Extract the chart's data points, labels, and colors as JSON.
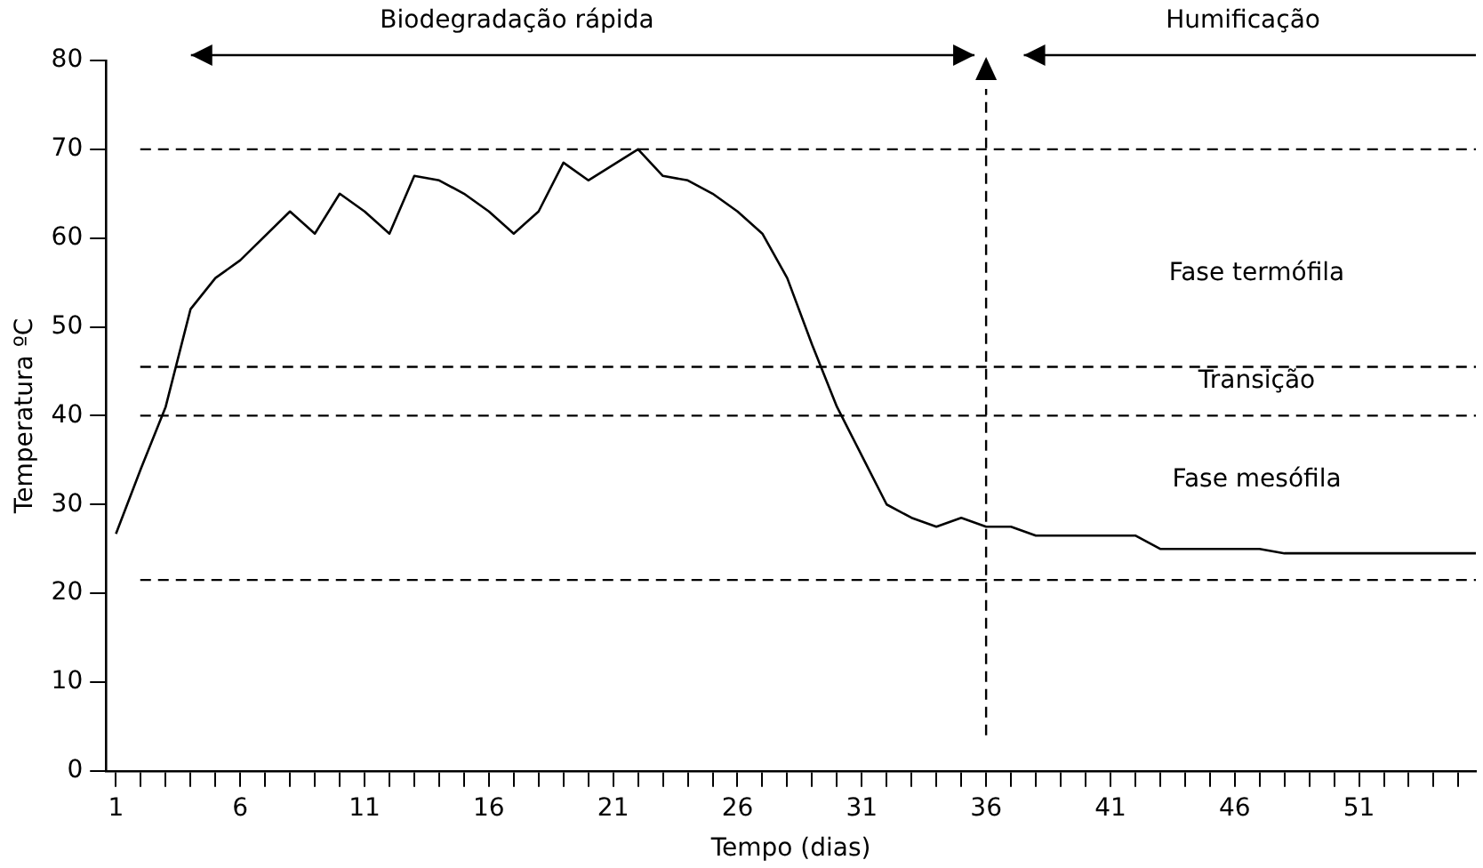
{
  "chart_data": {
    "type": "line",
    "xlabel": "Tempo (dias)",
    "ylabel": "Temperatura ºC",
    "x": [
      1,
      2,
      3,
      4,
      5,
      6,
      8,
      9,
      10,
      11,
      12,
      13,
      14,
      15,
      16,
      17,
      18,
      19,
      20,
      22,
      23,
      24,
      25,
      26,
      27,
      28,
      29,
      30,
      31,
      32,
      33,
      34,
      35,
      36,
      37,
      38,
      42,
      43,
      47,
      48,
      55.7
    ],
    "series": [
      {
        "color": "#000000",
        "values": [
          26.7,
          34,
          41,
          52,
          55.5,
          57.5,
          63,
          60.5,
          65,
          63,
          60.5,
          67,
          66.5,
          65,
          63,
          60.5,
          63,
          68.5,
          66.5,
          70,
          67,
          66.5,
          65,
          63,
          60.5,
          55.5,
          48,
          41,
          35.5,
          30,
          28.5,
          27.5,
          28.5,
          27.5,
          27.5,
          26.5,
          26.5,
          25,
          25,
          24.5,
          24.5
        ]
      }
    ],
    "xlim": [
      0.6,
      55.7
    ],
    "xticks": [
      1,
      {
        "value": 2,
        "label": null
      },
      {
        "value": 3,
        "label": null
      },
      {
        "value": 4,
        "label": null
      },
      {
        "value": 5,
        "label": null
      },
      6,
      {
        "value": 7,
        "label": null
      },
      {
        "value": 8,
        "label": null
      },
      {
        "value": 9,
        "label": null
      },
      {
        "value": 10,
        "label": null
      },
      11,
      {
        "value": 12,
        "label": null
      },
      {
        "value": 13,
        "label": null
      },
      {
        "value": 14,
        "label": null
      },
      {
        "value": 15,
        "label": null
      },
      16,
      {
        "value": 17,
        "label": null
      },
      {
        "value": 18,
        "label": null
      },
      {
        "value": 19,
        "label": null
      },
      {
        "value": 20,
        "label": null
      },
      21,
      {
        "value": 22,
        "label": null
      },
      {
        "value": 23,
        "label": null
      },
      {
        "value": 24,
        "label": null
      },
      {
        "value": 25,
        "label": null
      },
      26,
      {
        "value": 27,
        "label": null
      },
      {
        "value": 28,
        "label": null
      },
      {
        "value": 29,
        "label": null
      },
      {
        "value": 30,
        "label": null
      },
      31,
      {
        "value": 32,
        "label": null
      },
      {
        "value": 33,
        "label": null
      },
      {
        "value": 34,
        "label": null
      },
      {
        "value": 35,
        "label": null
      },
      36,
      {
        "value": 37,
        "label": null
      },
      {
        "value": 38,
        "label": null
      },
      {
        "value": 39,
        "label": null
      },
      {
        "value": 40,
        "label": null
      },
      41,
      {
        "value": 42,
        "label": null
      },
      {
        "value": 43,
        "label": null
      },
      {
        "value": 44,
        "label": null
      },
      {
        "value": 45,
        "label": null
      },
      46,
      {
        "value": 47,
        "label": null
      },
      {
        "value": 48,
        "label": null
      },
      {
        "value": 49,
        "label": null
      },
      {
        "value": 50,
        "label": null
      },
      51,
      {
        "value": 52,
        "label": null
      },
      {
        "value": 53,
        "label": null
      },
      {
        "value": 54,
        "label": null
      },
      {
        "value": 55,
        "label": null
      }
    ],
    "ylim": [
      0,
      80
    ],
    "yticks": [
      0,
      10,
      20,
      30,
      40,
      50,
      60,
      70,
      80
    ],
    "grid": false,
    "legend": false,
    "marker": "none",
    "line_style": "solid",
    "ref_lines": [
      {
        "axis": "x",
        "value": 36,
        "line_style": "dashed",
        "color": "#000000"
      },
      {
        "axis": "y",
        "value": 70,
        "line_style": "dashed",
        "color": "#000000"
      },
      {
        "axis": "y",
        "value": 45.5,
        "line_style": "dashed",
        "color": "#000000"
      },
      {
        "axis": "y",
        "value": 40,
        "line_style": "dashed",
        "color": "#000000"
      },
      {
        "axis": "y",
        "value": 21.5,
        "line_style": "dashed",
        "color": "#000000"
      }
    ],
    "annotations": [
      "Biodegradação rápida",
      "Humificação",
      "Fase termófila",
      "Transição",
      "Fase mesófila"
    ]
  }
}
